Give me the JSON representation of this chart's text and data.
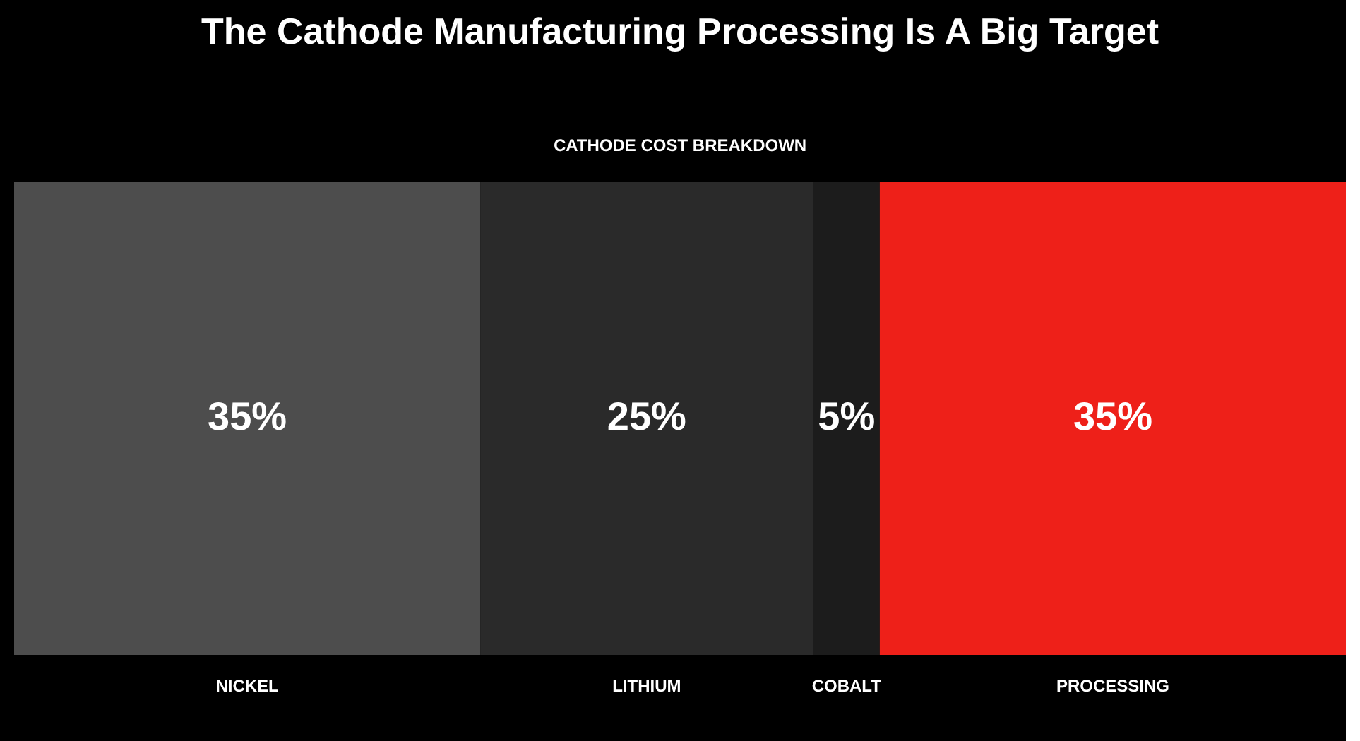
{
  "chart_data": {
    "type": "bar",
    "title": "The Cathode Manufacturing Processing Is A Big Target",
    "subtitle": "CATHODE COST BREAKDOWN",
    "orientation": "horizontal",
    "stacked": true,
    "categories": [
      null
    ],
    "series": [
      {
        "name": "NICKEL",
        "color": "#4d4d4d",
        "values": [
          35
        ],
        "value_labels": [
          "35%"
        ]
      },
      {
        "name": "LITHIUM",
        "color": "#2a2a2a",
        "values": [
          25
        ],
        "value_labels": [
          "25%"
        ]
      },
      {
        "name": "COBALT",
        "color": "#1c1c1c",
        "values": [
          5
        ],
        "value_labels": [
          "5%"
        ]
      },
      {
        "name": "PROCESSING",
        "color": "#ee2019",
        "values": [
          35
        ],
        "value_labels": [
          "35%"
        ]
      }
    ],
    "legend": false
  }
}
